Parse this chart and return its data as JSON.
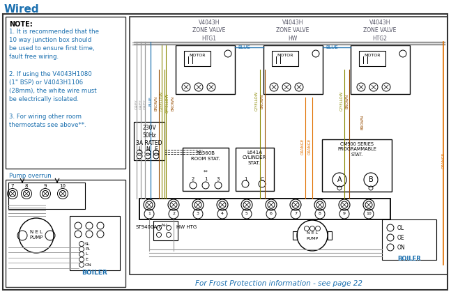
{
  "title": "Wired",
  "title_color": "#1a6faf",
  "bg_color": "#ffffff",
  "border_color": "#333333",
  "note_title": "NOTE:",
  "note_lines": [
    "1. It is recommended that the",
    "10 way junction box should",
    "be used to ensure first time,",
    "fault free wiring.",
    " ",
    "2. If using the V4043H1080",
    "(1\" BSP) or V4043H1106",
    "(28mm), the white wire must",
    "be electrically isolated.",
    " ",
    "3. For wiring other room",
    "thermostats see above**."
  ],
  "pump_overrun_label": "Pump overrun",
  "zone_labels": [
    "V4043H\nZONE VALVE\nHTG1",
    "V4043H\nZONE VALVE\nHW",
    "V4043H\nZONE VALVE\nHTG2"
  ],
  "footer_text": "For Frost Protection information - see page 22",
  "footer_color": "#1a6faf",
  "power_label": "230V\n50Hz\n3A RATED",
  "boiler_label": "BOILER",
  "room_stat_label": "T6360B\nROOM STAT.",
  "cylinder_stat_label": "L641A\nCYLINDER\nSTAT.",
  "cm900_label": "CM900 SERIES\nPROGRAMMABLE\nSTAT.",
  "wire_colors": {
    "grey": "#999999",
    "blue": "#1a6faf",
    "brown": "#964B00",
    "gyellow": "#888800",
    "orange": "#E07000",
    "black": "#222222"
  }
}
